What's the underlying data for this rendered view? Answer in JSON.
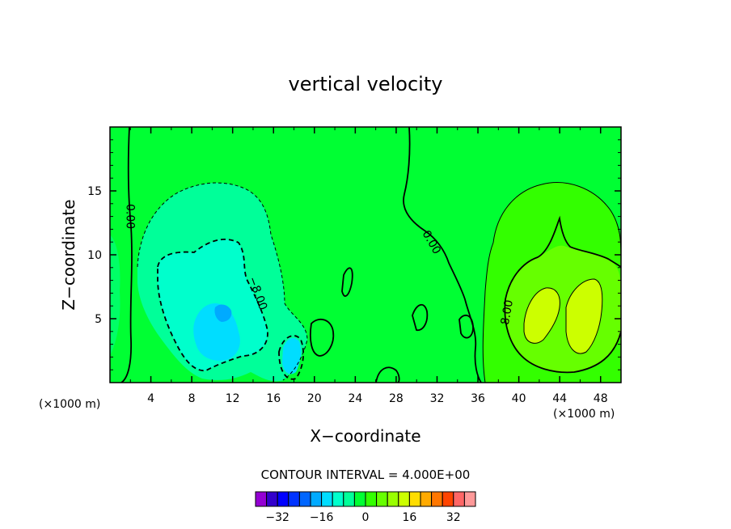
{
  "chart_data": {
    "type": "heatmap",
    "title": "vertical velocity",
    "xlabel": "X−coordinate",
    "ylabel": "Z−coordinate",
    "x_unit_left": "(×1000 m)",
    "x_unit_right": "(×1000 m)",
    "xlim": [
      0,
      50
    ],
    "ylim": [
      0,
      20
    ],
    "x_ticks": [
      4,
      8,
      12,
      16,
      20,
      24,
      28,
      32,
      36,
      40,
      44,
      48
    ],
    "x_tick_labels": [
      "4",
      "8",
      "12",
      "16",
      "20",
      "24",
      "28",
      "32",
      "36",
      "40",
      "44",
      "48"
    ],
    "y_ticks": [
      5,
      10,
      15
    ],
    "y_tick_labels": [
      "5",
      "10",
      "15"
    ],
    "contour_interval_text": "CONTOUR INTERVAL = 4.000E+00",
    "contour_labels": [
      {
        "text": "0.00",
        "x": 2.0,
        "y": 13.0,
        "angle": 90
      },
      {
        "text": "0.00",
        "x": 31.5,
        "y": 11.0,
        "angle": 60
      },
      {
        "text": "−8.00",
        "x": 14.5,
        "y": 7.0,
        "angle": 70
      },
      {
        "text": "8.00",
        "x": 38.8,
        "y": 5.5,
        "angle": -80
      }
    ],
    "colorbar": {
      "levels": [
        -36,
        -32,
        -28,
        -24,
        -20,
        -16,
        -12,
        -8,
        -4,
        0,
        4,
        8,
        12,
        16,
        20,
        24,
        28,
        32,
        36
      ],
      "colors": [
        "#9400d3",
        "#3300cc",
        "#0000ff",
        "#0033ff",
        "#0066ff",
        "#00aaff",
        "#00ddff",
        "#00ffcc",
        "#00ff99",
        "#00ff33",
        "#33ff00",
        "#66ff00",
        "#99ff00",
        "#ccff00",
        "#ffdd00",
        "#ffaa00",
        "#ff7700",
        "#ff4400",
        "#ff6666",
        "#ff9999"
      ],
      "tick_values": [
        -32,
        -16,
        0,
        16,
        32
      ],
      "tick_labels": [
        "−32",
        "−16",
        "0",
        "16",
        "32"
      ]
    },
    "features": [
      {
        "kind": "downdraft",
        "center": [
          10,
          8
        ],
        "max_level": -20,
        "description_levels": [
          -4,
          -8,
          -12,
          -16,
          -20
        ]
      },
      {
        "kind": "updraft",
        "center": [
          44,
          6
        ],
        "max_level": 16,
        "description_levels": [
          4,
          8,
          12,
          16
        ]
      }
    ]
  }
}
